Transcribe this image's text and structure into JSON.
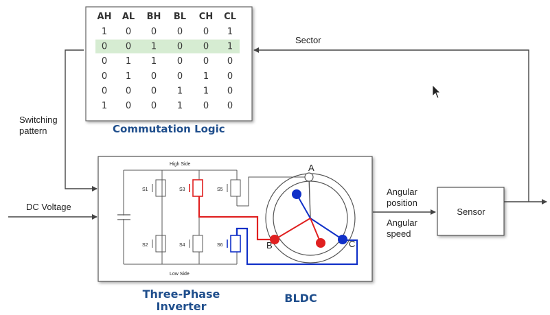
{
  "table": {
    "headers": [
      "AH",
      "AL",
      "BH",
      "BL",
      "CH",
      "CL"
    ],
    "rows": [
      [
        "1",
        "0",
        "0",
        "0",
        "0",
        "1"
      ],
      [
        "0",
        "0",
        "1",
        "0",
        "0",
        "1"
      ],
      [
        "0",
        "1",
        "1",
        "0",
        "0",
        "0"
      ],
      [
        "0",
        "1",
        "0",
        "0",
        "1",
        "0"
      ],
      [
        "0",
        "0",
        "0",
        "1",
        "1",
        "0"
      ],
      [
        "1",
        "0",
        "0",
        "1",
        "0",
        "0"
      ]
    ],
    "highlight_row": 1,
    "highlight_color": "#d6ecd2"
  },
  "labels": {
    "commutation_logic": "Commutation Logic",
    "sector": "Sector",
    "switching_pattern_1": "Switching",
    "switching_pattern_2": "pattern",
    "dc_voltage": "DC Voltage",
    "angular_position_1": "Angular",
    "angular_position_2": "position",
    "angular_speed_1": "Angular",
    "angular_speed_2": "speed",
    "sensor": "Sensor",
    "inverter_1": "Three-Phase",
    "inverter_2": "Inverter",
    "bldc": "BLDC",
    "high_side": "High Side",
    "low_side": "Low Side",
    "phase_a": "A",
    "phase_b": "B",
    "phase_c": "C",
    "switches": [
      "S1",
      "S3",
      "S5",
      "S2",
      "S4",
      "S6"
    ]
  },
  "colors": {
    "title_blue": "#1f4e8c",
    "active_red": "#e02020",
    "active_blue": "#1030c8",
    "line_gray": "#444444"
  }
}
